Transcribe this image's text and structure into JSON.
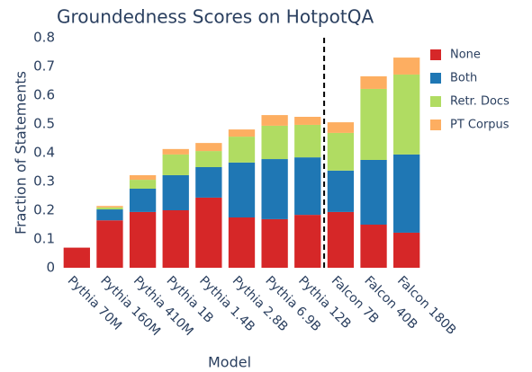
{
  "chart_data": {
    "type": "stacked_bar",
    "title": "Groundedness Scores on HotpotQA",
    "xlabel": "Model",
    "ylabel": "Fraction of Statements",
    "categories": [
      "Pythia 70M",
      "Pythia 160M",
      "Pythia 410M",
      "Pythia 1B",
      "Pythia 1.4B",
      "Pythia 2.8B",
      "Pythia 6.9B",
      "Pythia 12B",
      "Falcon 7B",
      "Falcon 40B",
      "Falcon 180B"
    ],
    "series": [
      {
        "name": "None",
        "color": "#d62728",
        "values": [
          0.07,
          0.165,
          0.194,
          0.2,
          0.244,
          0.175,
          0.169,
          0.184,
          0.194,
          0.15,
          0.122
        ]
      },
      {
        "name": "Both",
        "color": "#1f77b4",
        "values": [
          0,
          0.038,
          0.081,
          0.122,
          0.106,
          0.191,
          0.209,
          0.2,
          0.144,
          0.225,
          0.272
        ]
      },
      {
        "name": "Retr. Docs",
        "color": "#b0dc62",
        "values": [
          0,
          0.007,
          0.031,
          0.072,
          0.056,
          0.09,
          0.116,
          0.113,
          0.131,
          0.247,
          0.278
        ]
      },
      {
        "name": "PT Corpus",
        "color": "#fdae61",
        "values": [
          0,
          0.005,
          0.016,
          0.019,
          0.028,
          0.025,
          0.037,
          0.028,
          0.037,
          0.044,
          0.059
        ]
      }
    ],
    "ylim": [
      0,
      0.8
    ],
    "yticks": [
      0,
      0.1,
      0.2,
      0.3,
      0.4,
      0.5,
      0.6,
      0.7,
      0.8
    ],
    "grid": false,
    "legend": "right"
  }
}
